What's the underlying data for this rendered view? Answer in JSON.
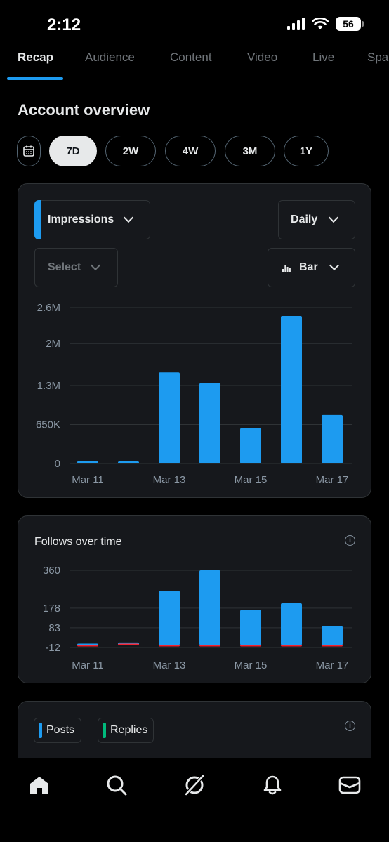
{
  "status_bar": {
    "time": "2:12",
    "battery": "56"
  },
  "tabs": [
    {
      "label": "Recap",
      "active": true
    },
    {
      "label": "Audience"
    },
    {
      "label": "Content"
    },
    {
      "label": "Video"
    },
    {
      "label": "Live"
    },
    {
      "label": "Spa"
    }
  ],
  "section_title": "Account overview",
  "ranges": [
    {
      "label": "7D",
      "active": true
    },
    {
      "label": "2W"
    },
    {
      "label": "4W"
    },
    {
      "label": "3M"
    },
    {
      "label": "1Y"
    }
  ],
  "impressions_card": {
    "metric_label": "Impressions",
    "interval_label": "Daily",
    "compare_label": "Select",
    "chart_type_label": "Bar"
  },
  "follows_card": {
    "title": "Follows over time"
  },
  "posts_card": {
    "legend": [
      "Posts",
      "Replies"
    ]
  },
  "colors": {
    "accent": "#1d9bf0",
    "negative": "#f4212e",
    "replies": "#00ba7c"
  },
  "icons": [
    "calendar-icon",
    "chevron-down-icon",
    "bar-chart-icon",
    "info-icon",
    "home-icon",
    "search-icon",
    "grok-icon",
    "bell-icon",
    "mail-icon"
  ],
  "chart_data": [
    {
      "type": "bar",
      "title": "",
      "categories": [
        "Mar 11",
        "Mar 12",
        "Mar 13",
        "Mar 14",
        "Mar 15",
        "Mar 16",
        "Mar 17"
      ],
      "x_tick_labels": [
        "Mar 11",
        "",
        "Mar 13",
        "",
        "Mar 15",
        "",
        "Mar 17"
      ],
      "values": [
        40000,
        35000,
        1520000,
        1340000,
        590000,
        2460000,
        810000
      ],
      "y_ticks": [
        0,
        650000,
        1300000,
        2000000,
        2600000
      ],
      "y_tick_labels": [
        "0",
        "650K",
        "1.3M",
        "2M",
        "2.6M"
      ],
      "ylim": [
        0,
        2600000
      ],
      "grid": true
    },
    {
      "type": "bar",
      "title": "Follows over time",
      "categories": [
        "Mar 11",
        "Mar 12",
        "Mar 13",
        "Mar 14",
        "Mar 15",
        "Mar 16",
        "Mar 17"
      ],
      "x_tick_labels": [
        "Mar 11",
        "",
        "Mar 13",
        "",
        "Mar 15",
        "",
        "Mar 17"
      ],
      "series": [
        {
          "values": [
            0,
            12,
            262,
            360,
            169,
            201,
            91
          ]
        },
        {
          "values": [
            -1,
            0,
            -5,
            -7,
            -5,
            -4,
            -2
          ]
        }
      ],
      "y_ticks": [
        -12,
        83,
        178,
        360
      ],
      "y_tick_labels": [
        "-12",
        "83",
        "178",
        "360"
      ],
      "ylim": [
        -12,
        360
      ],
      "grid": true
    }
  ]
}
